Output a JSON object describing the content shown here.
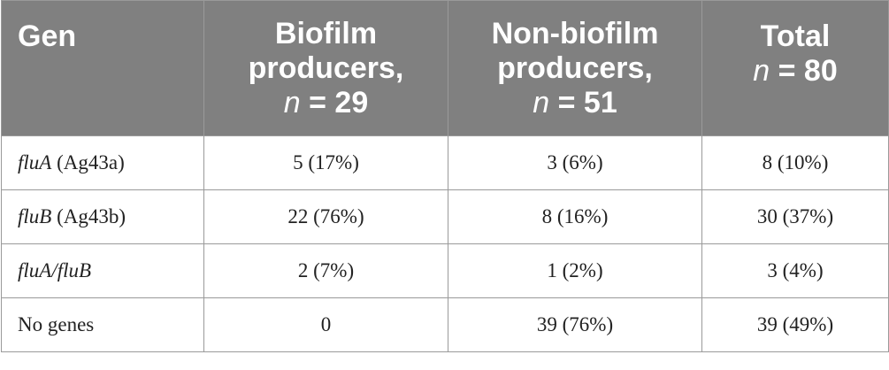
{
  "header": {
    "gen": "Gen",
    "biofilm_line1": "Biofilm",
    "biofilm_line2": "producers,",
    "biofilm_n_var": "n",
    "biofilm_n_val": " = 29",
    "nonbiofilm_line1": "Non-biofilm",
    "nonbiofilm_line2": "producers,",
    "nonbiofilm_n_var": "n",
    "nonbiofilm_n_val": " = 51",
    "total_line1": "Total",
    "total_n_var": "n",
    "total_n_val": " = 80"
  },
  "rows": [
    {
      "gene_italic": "fluA",
      "gene_rest": " (Ag43a)",
      "biofilm": "5 (17%)",
      "nonbiofilm": "3 (6%)",
      "total": "8 (10%)"
    },
    {
      "gene_italic": "fluB",
      "gene_rest": " (Ag43b)",
      "biofilm": "22 (76%)",
      "nonbiofilm": "8 (16%)",
      "total": "30 (37%)"
    },
    {
      "gene_italic": "fluA/fluB",
      "gene_rest": "",
      "biofilm": "2 (7%)",
      "nonbiofilm": "1 (2%)",
      "total": "3 (4%)"
    },
    {
      "gene_italic": "",
      "gene_rest": "No genes",
      "biofilm": "0",
      "nonbiofilm": "39 (76%)",
      "total": "39 (49%)"
    }
  ]
}
